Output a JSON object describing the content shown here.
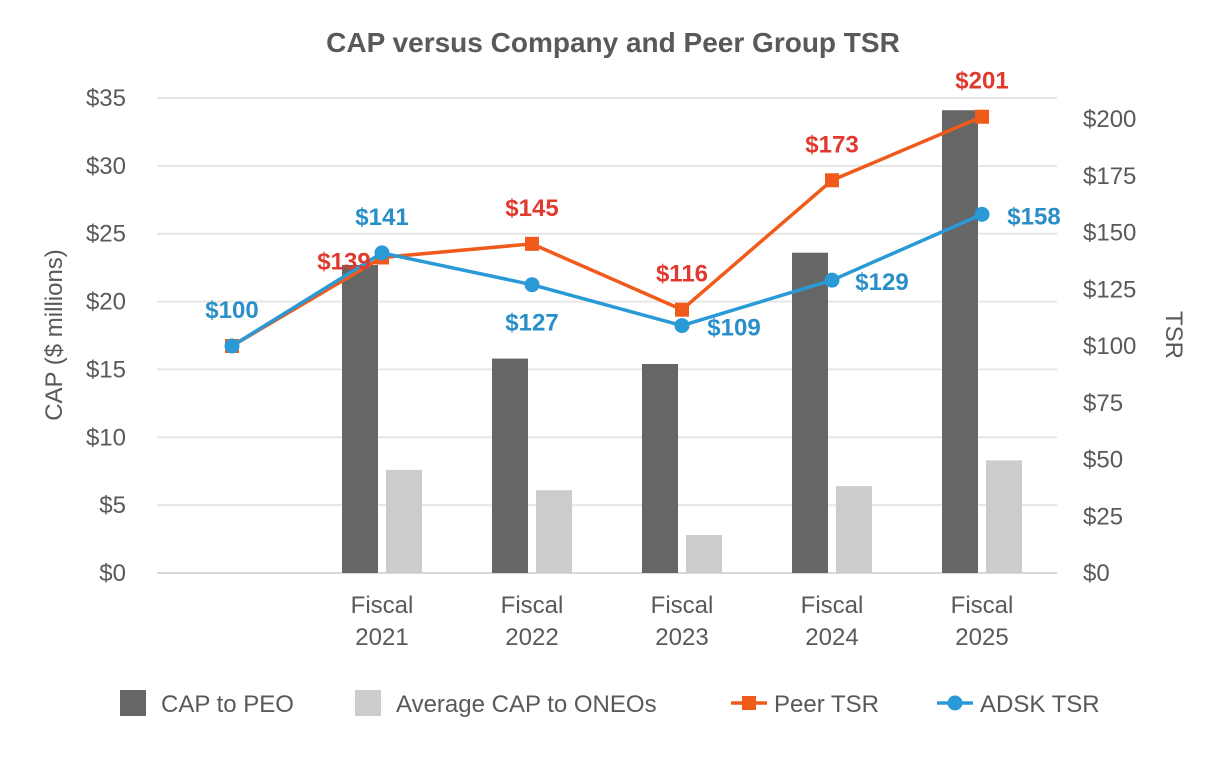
{
  "chart_data": {
    "type": "bar+line",
    "title": "CAP versus Company and Peer Group TSR",
    "categories": [
      [
        "",
        ""
      ],
      [
        "Fiscal",
        "2021"
      ],
      [
        "Fiscal",
        "2022"
      ],
      [
        "Fiscal",
        "2023"
      ],
      [
        "Fiscal",
        "2024"
      ],
      [
        "Fiscal",
        "2025"
      ]
    ],
    "y_left": {
      "label": "CAP ($ millions)",
      "min": 0,
      "max": 35,
      "step": 5,
      "ticks": [
        "$0",
        "$5",
        "$10",
        "$15",
        "$20",
        "$25",
        "$30",
        "$35"
      ]
    },
    "y_right": {
      "label": "TSR",
      "min": 0,
      "max": 210,
      "step": 25,
      "ticks": [
        "$0",
        "$25",
        "$50",
        "$75",
        "$100",
        "$125",
        "$150",
        "$175",
        "$200"
      ]
    },
    "grid": true,
    "legend_position": "bottom",
    "series": [
      {
        "name": "CAP to PEO",
        "kind": "bar",
        "axis": "left",
        "color": "#666666",
        "values": [
          null,
          22.7,
          15.8,
          15.4,
          23.6,
          34.1
        ]
      },
      {
        "name": "Average CAP to ONEOs",
        "kind": "bar",
        "axis": "left",
        "color": "#cccccc",
        "values": [
          null,
          7.6,
          6.1,
          2.8,
          6.4,
          8.3
        ]
      },
      {
        "name": "Peer TSR",
        "kind": "line",
        "marker": "square",
        "axis": "right",
        "color": "#f05a1a",
        "label_color": "#e03a2f",
        "values": [
          100,
          139,
          145,
          116,
          173,
          201
        ],
        "labels": [
          "",
          "$139",
          "$145",
          "$116",
          "$173",
          "$201"
        ]
      },
      {
        "name": "ADSK TSR",
        "kind": "line",
        "marker": "circle",
        "axis": "right",
        "color": "#2a9ad6",
        "label_color": "#2a8fc9",
        "values": [
          100,
          141,
          127,
          109,
          129,
          158
        ],
        "labels": [
          "$100",
          "$141",
          "$127",
          "$109",
          "$129",
          "$158"
        ]
      }
    ]
  }
}
